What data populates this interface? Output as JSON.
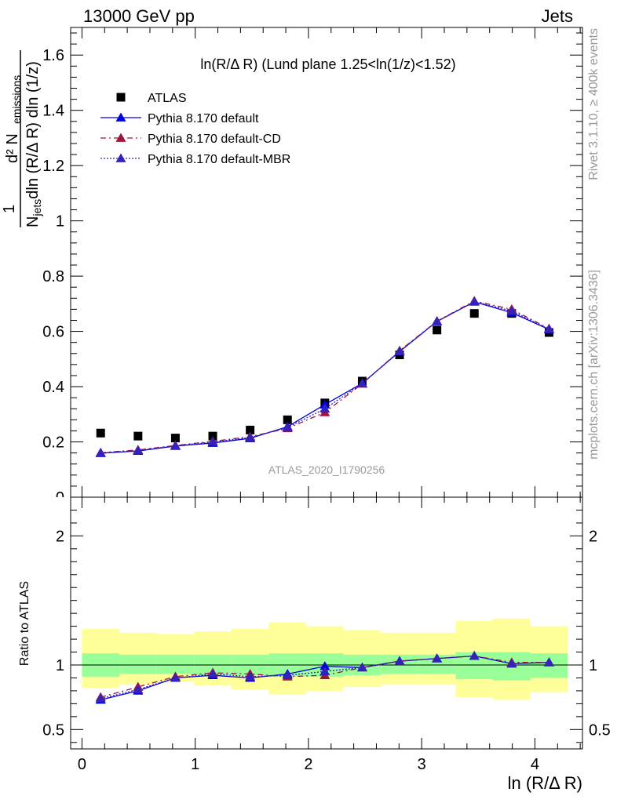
{
  "header": {
    "left": "13000 GeV pp",
    "right": "Jets"
  },
  "side": {
    "rivet": "Rivet 3.1.10, ≥ 400k events",
    "mcplots": "mcplots.cern.ch [arXiv:1306.3436]"
  },
  "watermark": "ATLAS_2020_I1790256",
  "chart_data": {
    "type": "scatter",
    "title": "ln(R/Δ R) (Lund plane 1.25<ln(1/z)<1.52)",
    "ylabel_main": "1/N_jets dln (R/Δ R) dln (1/z) d² N_emissions",
    "ylabel_ratio": "Ratio to ATLAS",
    "xlabel": "ln (R/Δ R)",
    "xlim": [
      -0.1,
      4.42
    ],
    "ylim_main": [
      0,
      1.7
    ],
    "ylim_ratio": [
      0.35,
      2.3
    ],
    "x_ticks": [
      0,
      1,
      2,
      3,
      4
    ],
    "y_ticks_main": [
      0.2,
      0.4,
      0.6,
      0.8,
      1,
      1.2,
      1.4,
      1.6
    ],
    "y_ticks_ratio": [
      0.5,
      1,
      2
    ],
    "x": [
      0.165,
      0.495,
      0.825,
      1.155,
      1.485,
      1.815,
      2.145,
      2.475,
      2.805,
      3.135,
      3.465,
      3.795,
      4.125
    ],
    "x_edges": [
      0,
      0.33,
      0.66,
      0.99,
      1.32,
      1.65,
      1.98,
      2.31,
      2.64,
      2.97,
      3.3,
      3.63,
      3.96,
      4.29
    ],
    "band_stat_lo": [
      0.91,
      0.93,
      0.93,
      0.92,
      0.92,
      0.91,
      0.91,
      0.92,
      0.93,
      0.93,
      0.89,
      0.88,
      0.9
    ],
    "band_stat_hi": [
      1.09,
      1.08,
      1.08,
      1.08,
      1.08,
      1.09,
      1.09,
      1.08,
      1.08,
      1.08,
      1.1,
      1.1,
      1.09
    ],
    "band_tot_lo": [
      0.82,
      0.85,
      0.87,
      0.84,
      0.81,
      0.77,
      0.8,
      0.83,
      0.85,
      0.85,
      0.75,
      0.73,
      0.79
    ],
    "band_tot_hi": [
      1.28,
      1.25,
      1.24,
      1.26,
      1.28,
      1.33,
      1.3,
      1.27,
      1.25,
      1.25,
      1.34,
      1.36,
      1.3
    ],
    "series": [
      {
        "name": "ATLAS",
        "color": "#000000",
        "marker": "square",
        "values": [
          0.232,
          0.221,
          0.214,
          0.221,
          0.243,
          0.28,
          0.341,
          0.42,
          0.515,
          0.605,
          0.665,
          0.665,
          0.596
        ],
        "ratio": [
          1,
          1,
          1,
          1,
          1,
          1,
          1,
          1,
          1,
          1,
          1,
          1,
          1
        ]
      },
      {
        "name": "Pythia 8.170 default",
        "color": "#0000dd",
        "marker": "triangle",
        "dash": "none",
        "values": [
          0.159,
          0.167,
          0.185,
          0.196,
          0.213,
          0.255,
          0.335,
          0.412,
          0.527,
          0.636,
          0.707,
          0.668,
          0.607
        ],
        "ratio": [
          0.73,
          0.8,
          0.9,
          0.92,
          0.9,
          0.93,
          0.99,
          0.98,
          1.03,
          1.05,
          1.07,
          1.01,
          1.02
        ]
      },
      {
        "name": "Pythia 8.170 default-CD",
        "color": "#a0153e",
        "marker": "triangle",
        "dash": "7,4,2,4",
        "values": [
          0.161,
          0.171,
          0.187,
          0.202,
          0.219,
          0.249,
          0.307,
          0.41,
          0.53,
          0.637,
          0.71,
          0.68,
          0.61
        ],
        "ratio": [
          0.75,
          0.83,
          0.91,
          0.94,
          0.93,
          0.91,
          0.92,
          0.98,
          1.03,
          1.05,
          1.07,
          1.02,
          1.02
        ]
      },
      {
        "name": "Pythia 8.170 default-MBR",
        "color": "#3322bb",
        "marker": "triangle",
        "dash": "2,2",
        "values": [
          0.16,
          0.169,
          0.186,
          0.2,
          0.216,
          0.252,
          0.32,
          0.411,
          0.528,
          0.636,
          0.708,
          0.674,
          0.608
        ],
        "ratio": [
          0.74,
          0.81,
          0.9,
          0.93,
          0.91,
          0.92,
          0.95,
          0.98,
          1.03,
          1.05,
          1.07,
          1.01,
          1.02
        ]
      }
    ],
    "band_colors": {
      "stat": "#99ff99",
      "total": "#ffff99"
    }
  }
}
